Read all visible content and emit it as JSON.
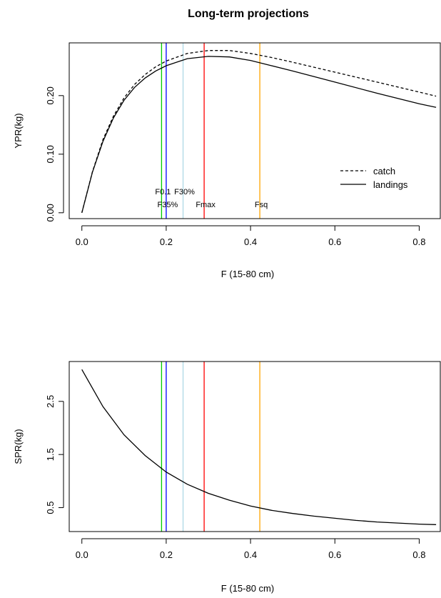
{
  "figure_title": "Long-term projections",
  "chart_data": [
    {
      "type": "line",
      "panel": "top",
      "xlabel": "F (15-80 cm)",
      "ylabel": "YPR(kg)",
      "xlim": [
        -0.03,
        0.85
      ],
      "ylim": [
        -0.01,
        0.29
      ],
      "x_ticks": [
        "0.0",
        "0.2",
        "0.4",
        "0.6",
        "0.8"
      ],
      "y_ticks": [
        "0.00",
        "0.10",
        "0.20"
      ],
      "series": [
        {
          "name": "catch",
          "style": "dashed",
          "color": "#000000",
          "x": [
            0.0,
            0.025,
            0.05,
            0.075,
            0.1,
            0.125,
            0.15,
            0.175,
            0.2,
            0.25,
            0.3,
            0.35,
            0.4,
            0.45,
            0.5,
            0.6,
            0.7,
            0.8,
            0.84
          ],
          "y": [
            0.0,
            0.07,
            0.125,
            0.165,
            0.196,
            0.219,
            0.236,
            0.249,
            0.259,
            0.272,
            0.277,
            0.277,
            0.272,
            0.265,
            0.257,
            0.24,
            0.223,
            0.206,
            0.199
          ]
        },
        {
          "name": "landings",
          "style": "solid",
          "color": "#000000",
          "x": [
            0.0,
            0.025,
            0.05,
            0.075,
            0.1,
            0.125,
            0.15,
            0.175,
            0.2,
            0.25,
            0.3,
            0.35,
            0.4,
            0.45,
            0.5,
            0.6,
            0.7,
            0.8,
            0.84
          ],
          "y": [
            0.0,
            0.069,
            0.122,
            0.162,
            0.192,
            0.214,
            0.23,
            0.242,
            0.251,
            0.263,
            0.267,
            0.266,
            0.26,
            0.251,
            0.242,
            0.223,
            0.204,
            0.186,
            0.18
          ]
        }
      ],
      "reference_lines": [
        {
          "label": "F0.1",
          "x": 0.189,
          "color": "#00cd00",
          "label_row": 1
        },
        {
          "label": "F35%",
          "x": 0.2,
          "color": "#0000ff",
          "label_row": 2
        },
        {
          "label": "F30%",
          "x": 0.24,
          "color": "#add8e6",
          "label_row": 1
        },
        {
          "label": "Fmax",
          "x": 0.29,
          "color": "#ff0000",
          "label_row": 2
        },
        {
          "label": "Fsq",
          "x": 0.422,
          "color": "#ffa500",
          "label_row": 2
        }
      ],
      "legend": {
        "position": "right",
        "entries": [
          "catch",
          "landings"
        ]
      }
    },
    {
      "type": "line",
      "panel": "bottom",
      "xlabel": "F (15-80 cm)",
      "ylabel": "SPR(kg)",
      "xlim": [
        -0.03,
        0.85
      ],
      "ylim": [
        0.05,
        3.25
      ],
      "x_ticks": [
        "0.0",
        "0.2",
        "0.4",
        "0.6",
        "0.8"
      ],
      "y_ticks": [
        "0.5",
        "1.5",
        "2.5"
      ],
      "series": [
        {
          "name": "",
          "style": "solid",
          "color": "#000000",
          "x": [
            0.0,
            0.05,
            0.1,
            0.15,
            0.2,
            0.25,
            0.3,
            0.35,
            0.4,
            0.45,
            0.5,
            0.55,
            0.6,
            0.65,
            0.7,
            0.75,
            0.8,
            0.84
          ],
          "y": [
            3.1,
            2.4,
            1.87,
            1.48,
            1.17,
            0.94,
            0.77,
            0.64,
            0.53,
            0.45,
            0.39,
            0.34,
            0.3,
            0.26,
            0.23,
            0.21,
            0.19,
            0.18
          ]
        }
      ],
      "reference_lines": [
        {
          "label": "",
          "x": 0.189,
          "color": "#00cd00"
        },
        {
          "label": "",
          "x": 0.2,
          "color": "#0000ff"
        },
        {
          "label": "",
          "x": 0.24,
          "color": "#add8e6"
        },
        {
          "label": "",
          "x": 0.29,
          "color": "#ff0000"
        },
        {
          "label": "",
          "x": 0.422,
          "color": "#ffa500"
        }
      ]
    }
  ]
}
